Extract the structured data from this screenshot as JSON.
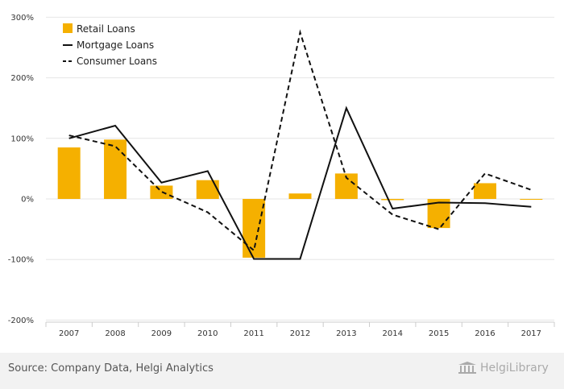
{
  "chart_data": {
    "type": "bar",
    "categories": [
      "2007",
      "2008",
      "2009",
      "2010",
      "2011",
      "2012",
      "2013",
      "2014",
      "2015",
      "2016",
      "2017"
    ],
    "series": [
      {
        "name": "Retail Loans",
        "type": "bar",
        "color": "#f5b000",
        "values": [
          85,
          98,
          22,
          31,
          -97,
          9,
          42,
          -2,
          -48,
          26,
          -1
        ]
      },
      {
        "name": "Mortgage Loans",
        "type": "line",
        "style": "solid",
        "color": "#111111",
        "values": [
          100,
          121,
          27,
          46,
          -99,
          -99,
          150,
          -16,
          -6,
          -7,
          -13
        ]
      },
      {
        "name": "Consumer Loans",
        "type": "line",
        "style": "dashed",
        "color": "#111111",
        "values": [
          105,
          87,
          12,
          -22,
          -85,
          275,
          35,
          -26,
          -50,
          42,
          15
        ]
      }
    ],
    "yticks": [
      "300%",
      "200%",
      "100%",
      "0%",
      "-100%",
      "-200%"
    ],
    "ytick_values": [
      300,
      200,
      100,
      0,
      -100,
      -200
    ],
    "ylim": [
      -200,
      300
    ],
    "grid": true,
    "legend_position": "top-left"
  },
  "footer": {
    "source": "Source: Company Data, Helgi Analytics",
    "logo_text": "HelgiLibrary"
  }
}
